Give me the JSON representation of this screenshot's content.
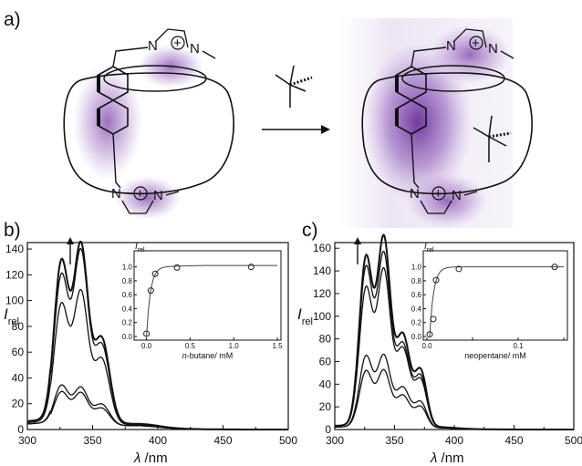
{
  "panels": {
    "a": "a)",
    "b": "b)",
    "c": "c)"
  },
  "chem": {
    "N": "N",
    "plus": "+"
  },
  "axes": {
    "xlabel_symbol": "λ",
    "xlabel_unit": "/nm",
    "ylabel_symbol": "I",
    "ylabel_sub": "rel"
  },
  "chart_data": [
    {
      "panel": "b",
      "type": "line",
      "xlim": [
        300,
        500
      ],
      "ylim": [
        0,
        145
      ],
      "xticks": [
        300,
        350,
        400,
        450,
        500
      ],
      "yticks": [
        0,
        20,
        40,
        60,
        80,
        100,
        120,
        140
      ],
      "peaks": [
        {
          "x": 326,
          "w": 5.5
        },
        {
          "x": 341,
          "w": 5.5
        },
        {
          "x": 357,
          "w": 6
        }
      ],
      "series": [
        {
          "values": [
            123,
            135,
            65
          ],
          "base": 6
        },
        {
          "values": [
            112,
            130,
            60
          ],
          "base": 6
        },
        {
          "values": [
            91,
            100,
            50
          ],
          "base": 5
        },
        {
          "values": [
            30,
            28,
            16
          ],
          "base": 4
        },
        {
          "values": [
            25,
            24,
            13
          ],
          "base": 4
        }
      ],
      "inset": {
        "type": "scatter",
        "ylabel_symbol": "I",
        "ylabel_sub": "rel",
        "xlabel_italic": "n",
        "xlabel_rest": "-butane/ mM",
        "xlim": [
          -0.1,
          1.5
        ],
        "ylim": [
          0,
          1.1
        ],
        "xticks": [
          "0.0",
          "0.5",
          "1.0",
          "1.5"
        ],
        "yticks": [
          "0.0",
          "0.2",
          "0.4",
          "0.6",
          "0.8",
          "1.0"
        ],
        "points": [
          [
            0.0,
            0.04
          ],
          [
            0.05,
            0.66
          ],
          [
            0.1,
            0.9
          ],
          [
            0.35,
            0.99
          ],
          [
            1.2,
            1.0
          ]
        ]
      }
    },
    {
      "panel": "c",
      "type": "line",
      "xlim": [
        300,
        500
      ],
      "ylim": [
        0,
        165
      ],
      "xticks": [
        300,
        350,
        400,
        450,
        500
      ],
      "yticks": [
        0,
        20,
        40,
        60,
        80,
        100,
        120,
        140,
        160
      ],
      "peaks": [
        {
          "x": 326,
          "w": 5.5
        },
        {
          "x": 341,
          "w": 5.5
        },
        {
          "x": 357,
          "w": 6
        },
        {
          "x": 372,
          "w": 5
        }
      ],
      "series": [
        {
          "values": [
            147,
            163,
            80,
            48
          ],
          "base": 3
        },
        {
          "values": [
            138,
            149,
            72,
            43
          ],
          "base": 3
        },
        {
          "values": [
            120,
            135,
            68,
            40
          ],
          "base": 3
        },
        {
          "values": [
            62,
            62,
            35,
            22
          ],
          "base": 2
        },
        {
          "values": [
            49,
            49,
            28,
            18
          ],
          "base": 2
        }
      ],
      "inset": {
        "type": "scatter",
        "ylabel_symbol": "I",
        "ylabel_sub": "rel",
        "xlabel_italic": "",
        "xlabel_rest": "neopentane/ mM",
        "xlim": [
          0,
          0.15
        ],
        "ylim": [
          0,
          1.1
        ],
        "xticks": [
          "0.0",
          "",
          "0.1",
          ""
        ],
        "yticks": [
          "0.0",
          "0.2",
          "0.4",
          "0.6",
          "0.8",
          "1.0"
        ],
        "points": [
          [
            0.003,
            0.03
          ],
          [
            0.007,
            0.25
          ],
          [
            0.01,
            0.81
          ],
          [
            0.035,
            0.97
          ],
          [
            0.14,
            1.0
          ]
        ]
      }
    }
  ]
}
